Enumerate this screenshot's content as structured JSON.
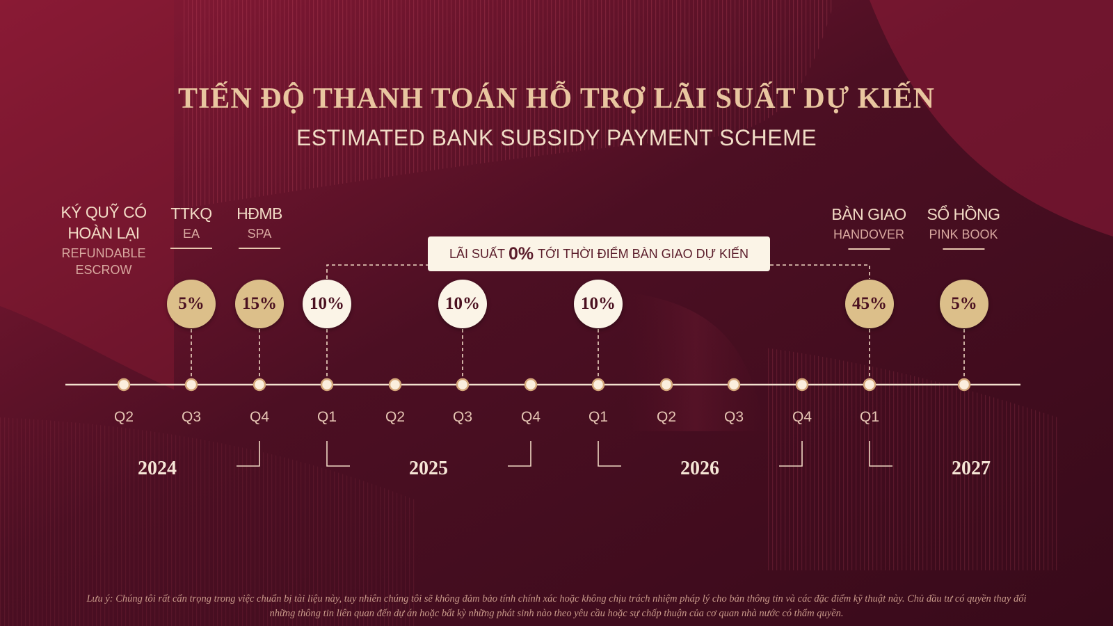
{
  "header": {
    "title": "TIẾN ĐỘ THANH TOÁN HỖ TRỢ LÃI SUẤT DỰ KIẾN",
    "subtitle": "ESTIMATED BANK SUBSIDY PAYMENT SCHEME"
  },
  "milestones": [
    {
      "vi_line1": "KÝ QUỸ CÓ",
      "vi_line2": "HOÀN LẠI",
      "en_line1": "REFUNDABLE",
      "en_line2": "ESCROW"
    },
    {
      "vi_line1": "TTKQ",
      "en_line1": "EA"
    },
    {
      "vi_line1": "HĐMB",
      "en_line1": "SPA"
    },
    {
      "vi_line1": "BÀN GIAO",
      "en_line1": "HANDOVER"
    },
    {
      "vi_line1": "SỔ HỒNG",
      "en_line1": "PINK BOOK"
    }
  ],
  "banner": {
    "prefix": "LÃI SUẤT",
    "value": "0%",
    "suffix": "TỚI THỜI ĐIỂM BÀN GIAO DỰ KIẾN",
    "color": "#fbf4e7"
  },
  "payments": [
    {
      "label": "5%",
      "quarter_index": 1,
      "style": "gold"
    },
    {
      "label": "15%",
      "quarter_index": 2,
      "style": "gold"
    },
    {
      "label": "10%",
      "quarter_index": 3,
      "style": "cream"
    },
    {
      "label": "10%",
      "quarter_index": 5,
      "style": "cream"
    },
    {
      "label": "10%",
      "quarter_index": 7,
      "style": "cream"
    },
    {
      "label": "45%",
      "quarter_index": 11,
      "style": "gold"
    },
    {
      "label": "5%",
      "quarter_index": 12,
      "style": "gold"
    }
  ],
  "quarters": [
    "Q2",
    "Q3",
    "Q4",
    "Q1",
    "Q2",
    "Q3",
    "Q4",
    "Q1",
    "Q2",
    "Q3",
    "Q4",
    "Q1"
  ],
  "years": [
    "2024",
    "2025",
    "2026",
    "2027"
  ],
  "footnote": {
    "line1": "Lưu ý: Chúng tôi rất cẩn trọng trong việc chuẩn bị tài liệu này, tuy nhiên chúng tôi sẽ không đảm bảo tính chính xác hoặc không chịu trách nhiệm pháp lý cho bản thông tin và các đặc điểm kỹ thuật này. Chủ đầu tư có quyền thay đổi",
    "line2": "những thông tin liên quan đến dự án hoặc bất kỳ những phát sinh nào theo yêu cầu hoặc sự chấp thuận của cơ quan nhà nước có thẩm quyền."
  },
  "colors": {
    "background": "#4a0f22",
    "gold": "#dcbf8a",
    "cream": "#fbf4e7",
    "title": "#e9c6a0"
  }
}
